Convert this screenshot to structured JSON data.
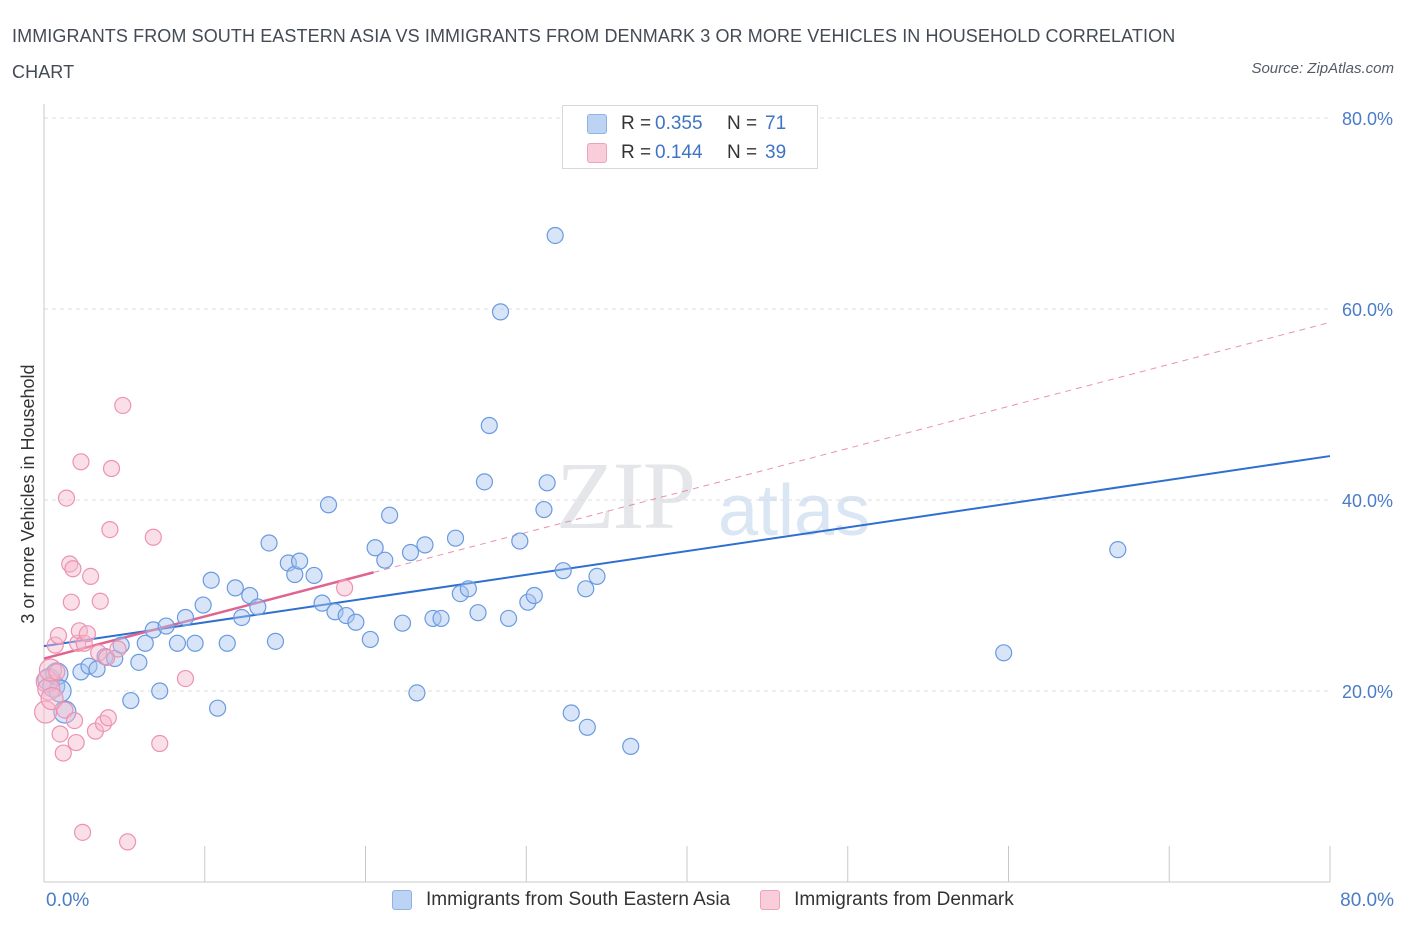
{
  "title": "IMMIGRANTS FROM SOUTH EASTERN ASIA VS IMMIGRANTS FROM DENMARK 3 OR MORE VEHICLES IN HOUSEHOLD CORRELATION CHART",
  "source": "Source: ZipAtlas.com",
  "watermark": {
    "zip": "ZIP",
    "atlas": "atlas"
  },
  "legend": {
    "rows": [
      {
        "r_label": "R =",
        "r_value": "0.355",
        "n_label": "N =",
        "n_value": "71",
        "color": "#a9c6f0"
      },
      {
        "r_label": "R =",
        "r_value": "0.144",
        "n_label": "N =",
        "n_value": "39",
        "color": "#f6b8cb"
      }
    ]
  },
  "bottom_legend": [
    "Immigrants from South Eastern Asia",
    "Immigrants from Denmark"
  ],
  "x_min_label": "0.0%",
  "x_max_label": "80.0%",
  "chart_data": {
    "type": "scatter",
    "ylabel": "3 or more Vehicles in Household",
    "xlim": [
      0,
      80
    ],
    "ylim": [
      0,
      80
    ],
    "y_ticks": [
      "20.0%",
      "40.0%",
      "60.0%",
      "80.0%"
    ],
    "y_tick_values": [
      20,
      40,
      60,
      80
    ],
    "grid": "horizontal dashed",
    "legend_placement": "top-center",
    "colors": {
      "blue": "#6a9ae0",
      "pink": "#ec93b0",
      "blue_line": "#2f6fd0",
      "pink_line": "#e0648f"
    },
    "series": [
      {
        "name": "Immigrants from South Eastern Asia",
        "color": "blue",
        "trend": {
          "x0": 0,
          "y0": 24.7,
          "x1": 80,
          "y1": 44.6,
          "style": "solid"
        },
        "points": [
          [
            0.3,
            21.2
          ],
          [
            0.6,
            20.5
          ],
          [
            0.8,
            21.8
          ],
          [
            1.0,
            20.0
          ],
          [
            1.3,
            17.8
          ],
          [
            2.3,
            22.0
          ],
          [
            2.8,
            22.6
          ],
          [
            3.3,
            22.3
          ],
          [
            3.8,
            23.6
          ],
          [
            4.4,
            23.4
          ],
          [
            4.8,
            24.8
          ],
          [
            5.4,
            19.0
          ],
          [
            5.9,
            23.0
          ],
          [
            6.3,
            25.0
          ],
          [
            6.8,
            26.4
          ],
          [
            7.2,
            20.0
          ],
          [
            7.6,
            26.8
          ],
          [
            8.3,
            25.0
          ],
          [
            8.8,
            27.7
          ],
          [
            9.4,
            25.0
          ],
          [
            9.9,
            29.0
          ],
          [
            10.4,
            31.6
          ],
          [
            10.8,
            18.2
          ],
          [
            11.4,
            25.0
          ],
          [
            11.9,
            30.8
          ],
          [
            12.3,
            27.7
          ],
          [
            12.8,
            30.0
          ],
          [
            13.3,
            28.8
          ],
          [
            14.0,
            35.5
          ],
          [
            14.4,
            25.2
          ],
          [
            15.2,
            33.4
          ],
          [
            15.6,
            32.2
          ],
          [
            15.9,
            33.6
          ],
          [
            16.8,
            32.1
          ],
          [
            17.3,
            29.2
          ],
          [
            17.7,
            39.5
          ],
          [
            18.1,
            28.3
          ],
          [
            18.8,
            27.9
          ],
          [
            19.4,
            27.2
          ],
          [
            20.3,
            25.4
          ],
          [
            20.6,
            35.0
          ],
          [
            21.2,
            33.7
          ],
          [
            21.5,
            38.4
          ],
          [
            22.3,
            27.1
          ],
          [
            22.8,
            34.5
          ],
          [
            23.2,
            19.8
          ],
          [
            23.7,
            35.3
          ],
          [
            24.2,
            27.6
          ],
          [
            24.7,
            27.6
          ],
          [
            25.6,
            36.0
          ],
          [
            25.9,
            30.2
          ],
          [
            26.4,
            30.7
          ],
          [
            27.0,
            28.2
          ],
          [
            27.4,
            41.9
          ],
          [
            27.7,
            47.8
          ],
          [
            28.4,
            59.7
          ],
          [
            28.9,
            27.6
          ],
          [
            29.6,
            35.7
          ],
          [
            30.1,
            29.3
          ],
          [
            30.5,
            30.0
          ],
          [
            31.1,
            39.0
          ],
          [
            31.3,
            41.8
          ],
          [
            31.8,
            67.7
          ],
          [
            32.3,
            32.6
          ],
          [
            32.8,
            17.7
          ],
          [
            33.7,
            30.7
          ],
          [
            33.8,
            16.2
          ],
          [
            34.4,
            32.0
          ],
          [
            36.5,
            14.2
          ],
          [
            59.7,
            24.0
          ],
          [
            66.8,
            34.8
          ]
        ]
      },
      {
        "name": "Immigrants from Denmark",
        "color": "pink",
        "trend": {
          "x0": 0,
          "y0": 23.4,
          "x1": 80,
          "y1": 58.6,
          "solid_until_x": 20.5,
          "style": "solid-then-dashed"
        },
        "points": [
          [
            0.1,
            17.8
          ],
          [
            0.2,
            21.0
          ],
          [
            0.3,
            20.2
          ],
          [
            0.4,
            22.2
          ],
          [
            0.5,
            19.2
          ],
          [
            0.7,
            24.8
          ],
          [
            0.8,
            22.0
          ],
          [
            0.9,
            25.8
          ],
          [
            1.0,
            15.5
          ],
          [
            1.2,
            13.5
          ],
          [
            1.3,
            18.0
          ],
          [
            1.4,
            40.2
          ],
          [
            1.6,
            33.3
          ],
          [
            1.7,
            29.3
          ],
          [
            1.8,
            32.8
          ],
          [
            1.9,
            16.9
          ],
          [
            2.0,
            14.6
          ],
          [
            2.1,
            25.0
          ],
          [
            2.2,
            26.3
          ],
          [
            2.3,
            44.0
          ],
          [
            2.4,
            5.2
          ],
          [
            2.5,
            25.0
          ],
          [
            2.7,
            26.0
          ],
          [
            2.9,
            32.0
          ],
          [
            3.2,
            15.8
          ],
          [
            3.4,
            24.0
          ],
          [
            3.5,
            29.4
          ],
          [
            3.7,
            16.6
          ],
          [
            3.9,
            23.5
          ],
          [
            4.0,
            17.2
          ],
          [
            4.1,
            36.9
          ],
          [
            4.2,
            43.3
          ],
          [
            4.6,
            24.4
          ],
          [
            4.9,
            49.9
          ],
          [
            5.2,
            4.2
          ],
          [
            6.8,
            36.1
          ],
          [
            7.2,
            14.5
          ],
          [
            8.8,
            21.3
          ],
          [
            18.7,
            30.8
          ]
        ]
      }
    ]
  }
}
